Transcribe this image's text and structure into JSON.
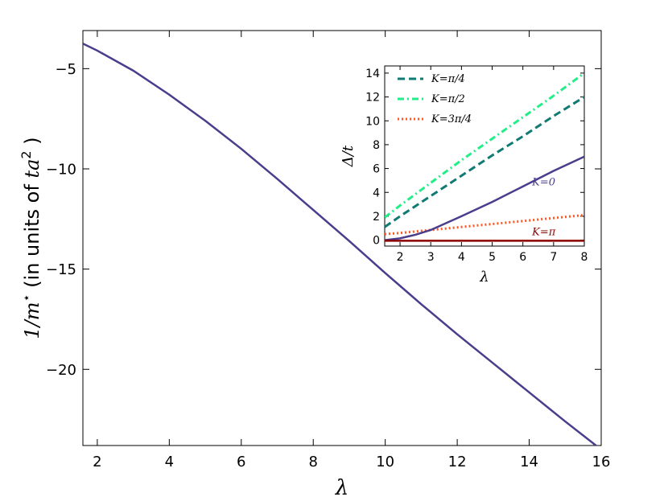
{
  "chart_data": [
    {
      "type": "line",
      "xlabel": "λ",
      "ylabel_math": "1/m",
      "ylabel_sup": "⋆",
      "ylabel_text": " (in units of ",
      "ylabel_unit": "ta",
      "ylabel_unit_sup": "2",
      "ylabel_tail": " )",
      "xlim": [
        1.6,
        16
      ],
      "ylim": [
        -23.8,
        -3.1
      ],
      "xticks": [
        2,
        4,
        6,
        8,
        10,
        12,
        14,
        16
      ],
      "xtick_labels": [
        "2",
        "4",
        "6",
        "8",
        "10",
        "12",
        "14",
        "16"
      ],
      "yticks": [
        -5,
        -10,
        -15,
        -20
      ],
      "ytick_labels": [
        "−5",
        "−10",
        "−15",
        "−20"
      ],
      "series": [
        {
          "color": "#4b3c8c",
          "style": "solid",
          "x": [
            1.6,
            2,
            3,
            4,
            5,
            6,
            7,
            8,
            9,
            10,
            11,
            12,
            13,
            14,
            15,
            16
          ],
          "y": [
            -3.75,
            -4.1,
            -5.1,
            -6.3,
            -7.6,
            -9.0,
            -10.5,
            -12.05,
            -13.6,
            -15.2,
            -16.75,
            -18.25,
            -19.7,
            -21.15,
            -22.6,
            -24.0
          ]
        }
      ]
    },
    {
      "type": "line",
      "xlabel": "λ",
      "ylabel": "Δ/t",
      "xlim": [
        1.5,
        8
      ],
      "ylim": [
        -0.5,
        14.6
      ],
      "xticks": [
        2,
        3,
        4,
        5,
        6,
        7,
        8
      ],
      "xtick_labels": [
        "2",
        "3",
        "4",
        "5",
        "6",
        "7",
        "8"
      ],
      "yticks": [
        0,
        2,
        4,
        6,
        8,
        10,
        12,
        14
      ],
      "ytick_labels": [
        "0",
        "2",
        "4",
        "6",
        "8",
        "10",
        "12",
        "14"
      ],
      "legend_position": "top-left",
      "series": [
        {
          "name": "K=π/4",
          "color": "#117a72",
          "style": "dashed",
          "x": [
            1.5,
            2,
            3,
            4,
            5,
            6,
            7,
            8
          ],
          "y": [
            1.1,
            2.0,
            3.7,
            5.4,
            7.1,
            8.7,
            10.4,
            12.0
          ]
        },
        {
          "name": "K=π/2",
          "color": "#22ee88",
          "style": "dashdot",
          "x": [
            1.5,
            2,
            3,
            4,
            5,
            6,
            7,
            8
          ],
          "y": [
            1.9,
            2.9,
            4.8,
            6.7,
            8.5,
            10.3,
            12.1,
            14.0
          ]
        },
        {
          "name": "K=3π/4",
          "color": "#ff5722",
          "style": "dotted",
          "x": [
            1.5,
            2,
            3,
            4,
            5,
            6,
            7,
            8
          ],
          "y": [
            0.5,
            0.6,
            0.85,
            1.1,
            1.35,
            1.6,
            1.85,
            2.1
          ]
        },
        {
          "color": "#4b3c8c",
          "style": "solid",
          "label": "K=0",
          "x": [
            1.5,
            2,
            2.5,
            3,
            4,
            5,
            6,
            7,
            8
          ],
          "y": [
            0.0,
            0.15,
            0.45,
            0.85,
            2.0,
            3.2,
            4.5,
            5.8,
            7.0
          ]
        },
        {
          "color": "#8b0000",
          "style": "solid",
          "label": "K=π",
          "x": [
            1.5,
            2,
            3,
            4,
            5,
            6,
            7,
            8
          ],
          "y": [
            -0.05,
            -0.05,
            -0.05,
            -0.05,
            -0.05,
            -0.05,
            -0.05,
            -0.05
          ]
        }
      ],
      "annotations": [
        {
          "text": "K=0",
          "color": "#4b3c8c",
          "at": [
            6.3,
            4.6
          ]
        },
        {
          "text": "K=π",
          "color": "#8b0000",
          "at": [
            6.3,
            0.4
          ]
        }
      ]
    }
  ]
}
